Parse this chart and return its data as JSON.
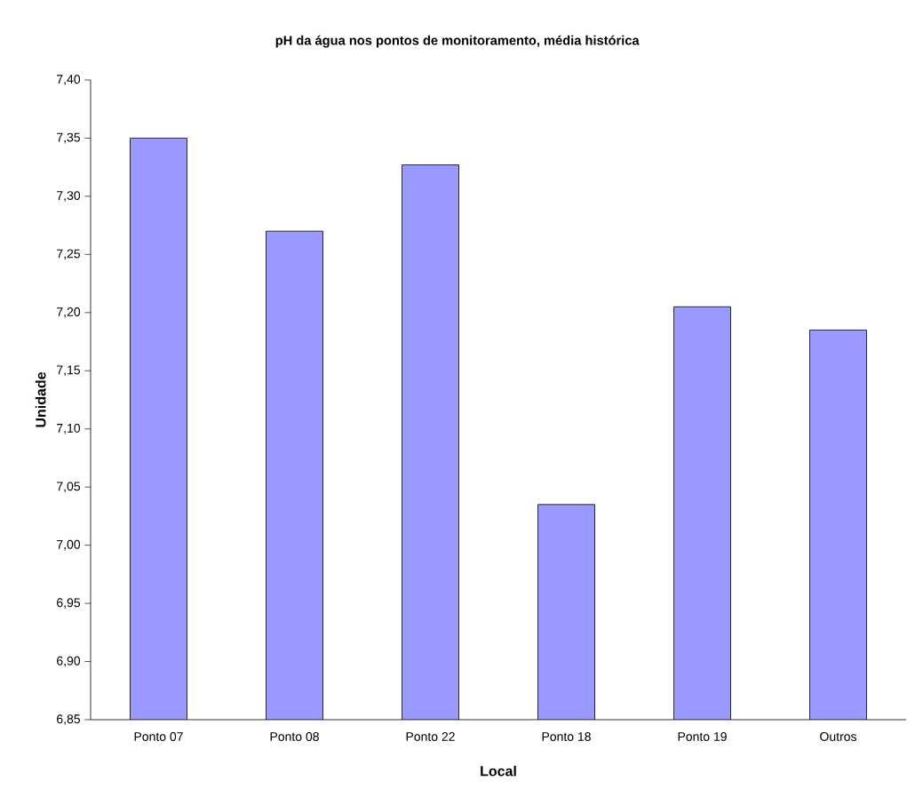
{
  "chart_data": {
    "type": "bar",
    "title": "pH da água nos pontos de monitoramento, média histórica",
    "xlabel": "Local",
    "ylabel": "Unidade",
    "categories": [
      "Ponto 07",
      "Ponto 08",
      "Ponto 22",
      "Ponto 18",
      "Ponto 19",
      "Outros"
    ],
    "values": [
      7.35,
      7.27,
      7.327,
      7.035,
      7.205,
      7.185
    ],
    "color": "#9999ff",
    "ylim": [
      6.85,
      7.4
    ],
    "yticks": [
      {
        "value": 6.85,
        "label": "6,85"
      },
      {
        "value": 6.9,
        "label": "6,90"
      },
      {
        "value": 6.95,
        "label": "6,95"
      },
      {
        "value": 7.0,
        "label": "7,00"
      },
      {
        "value": 7.05,
        "label": "7,05"
      },
      {
        "value": 7.1,
        "label": "7,10"
      },
      {
        "value": 7.15,
        "label": "7,15"
      },
      {
        "value": 7.2,
        "label": "7,20"
      },
      {
        "value": 7.25,
        "label": "7,25"
      },
      {
        "value": 7.3,
        "label": "7,30"
      },
      {
        "value": 7.35,
        "label": "7,35"
      },
      {
        "value": 7.4,
        "label": "7,40"
      }
    ],
    "grid": false
  }
}
